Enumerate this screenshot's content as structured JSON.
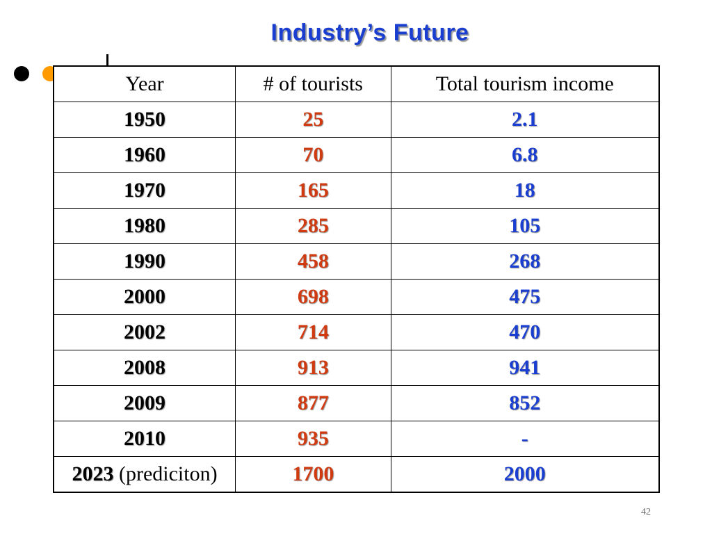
{
  "slide": {
    "title": "Industry’s Future",
    "page_number": "42"
  },
  "table": {
    "headers": [
      "Year",
      "# of tourists",
      "Total tourism income"
    ],
    "rows": [
      {
        "year": "1950",
        "note": "",
        "tourists": "25",
        "income": "2.1"
      },
      {
        "year": "1960",
        "note": "",
        "tourists": "70",
        "income": "6.8"
      },
      {
        "year": "1970",
        "note": "",
        "tourists": "165",
        "income": "18"
      },
      {
        "year": "1980",
        "note": "",
        "tourists": "285",
        "income": "105"
      },
      {
        "year": "1990",
        "note": "",
        "tourists": "458",
        "income": "268"
      },
      {
        "year": "2000",
        "note": "",
        "tourists": "698",
        "income": "475"
      },
      {
        "year": "2002",
        "note": "",
        "tourists": "714",
        "income": "470"
      },
      {
        "year": "2008",
        "note": "",
        "tourists": "913",
        "income": "941"
      },
      {
        "year": "2009",
        "note": "",
        "tourists": "877",
        "income": "852"
      },
      {
        "year": "2010",
        "note": "",
        "tourists": "935",
        "income": "-"
      },
      {
        "year": "2023",
        "note": " (prediciton)",
        "tourists": "1700",
        "income": "2000"
      }
    ]
  },
  "colors": {
    "title": "#1a3fd0",
    "tourists": "#d03a10",
    "income": "#1a3fd0",
    "bullet_primary": "#000000",
    "bullet_secondary": "#ff9a00"
  }
}
